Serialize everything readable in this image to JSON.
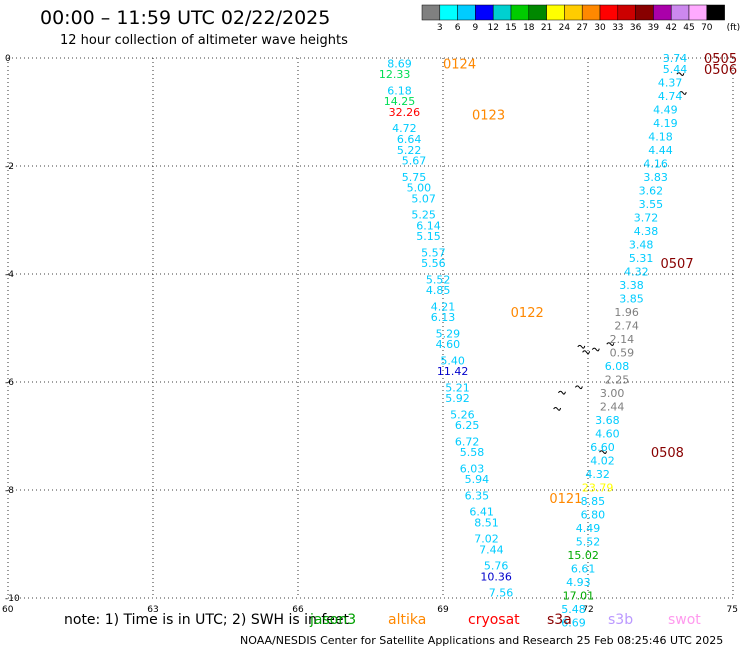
{
  "header": {
    "title": "00:00 – 11:59 UTC 02/22/2025",
    "subtitle": "12 hour collection of altimeter wave heights"
  },
  "footer": {
    "note": "note: 1) Time is in UTC; 2) SWH is in feet",
    "credit": "NOAA/NESDIS Center for Satellite Applications and Research     25 Feb 08:25:46 UTC 2025"
  },
  "colorbar": {
    "unit": "(ft)",
    "ticks": [
      "3",
      "6",
      "9",
      "12",
      "15",
      "18",
      "21",
      "24",
      "27",
      "30",
      "33",
      "36",
      "39",
      "42",
      "45",
      "70"
    ],
    "colors": [
      "#808080",
      "#00ffff",
      "#00ccff",
      "#0000ff",
      "#00d0d0",
      "#00cc00",
      "#008800",
      "#ffff00",
      "#ffcc00",
      "#ff8800",
      "#ff0000",
      "#cc0000",
      "#880000",
      "#aa00aa",
      "#cc88ee",
      "#ffaaff",
      "#000000"
    ]
  },
  "satellites": [
    {
      "name": "jason3",
      "color": "#00a000"
    },
    {
      "name": "altika",
      "color": "#ff8800"
    },
    {
      "name": "cryosat",
      "color": "#ff0000"
    },
    {
      "name": "s3a",
      "color": "#880000"
    },
    {
      "name": "s3b",
      "color": "#bb99ff"
    },
    {
      "name": "swot",
      "color": "#ff99ee"
    }
  ],
  "chart_data": {
    "type": "scatter",
    "xlim": [
      60,
      75
    ],
    "ylim": [
      -10,
      0
    ],
    "xticks": [
      "60",
      "63",
      "66",
      "69",
      "72",
      "75"
    ],
    "yticks": [
      "0",
      "-2",
      "-4",
      "-6",
      "-8",
      "-10"
    ],
    "grid": true,
    "legend": "bottom",
    "pass_labels": [
      {
        "label": "0124",
        "lon": 69.0,
        "lat": -0.1,
        "color": "#ff8800"
      },
      {
        "label": "0123",
        "lon": 69.6,
        "lat": -1.05,
        "color": "#ff8800"
      },
      {
        "label": "0122",
        "lon": 70.4,
        "lat": -4.7,
        "color": "#ff8800"
      },
      {
        "label": "0121",
        "lon": 71.2,
        "lat": -8.15,
        "color": "#ff8800"
      },
      {
        "label": "0505",
        "lon": 74.4,
        "lat": 0.0,
        "color": "#880000"
      },
      {
        "label": "0506",
        "lon": 74.4,
        "lat": -0.2,
        "color": "#880000"
      },
      {
        "label": "0507",
        "lon": 73.5,
        "lat": -3.8,
        "color": "#880000"
      },
      {
        "label": "0508",
        "lon": 73.3,
        "lat": -7.3,
        "color": "#880000"
      }
    ],
    "observations": [
      {
        "lon": 68.1,
        "lat": -0.1,
        "v": "8.69",
        "c": "#00ccff"
      },
      {
        "lon": 68.0,
        "lat": -0.3,
        "v": "12.33",
        "c": "#00dd55"
      },
      {
        "lon": 68.1,
        "lat": -0.6,
        "v": "6.18",
        "c": "#00ccff"
      },
      {
        "lon": 68.1,
        "lat": -0.8,
        "v": "14.25",
        "c": "#00dd55"
      },
      {
        "lon": 68.2,
        "lat": -1.0,
        "v": "32.26",
        "c": "#ff0000"
      },
      {
        "lon": 68.2,
        "lat": -1.3,
        "v": "4.72",
        "c": "#00ccff"
      },
      {
        "lon": 68.3,
        "lat": -1.5,
        "v": "6.64",
        "c": "#00ccff"
      },
      {
        "lon": 68.3,
        "lat": -1.7,
        "v": "5.22",
        "c": "#00ccff"
      },
      {
        "lon": 68.4,
        "lat": -1.9,
        "v": "5.67",
        "c": "#00ccff"
      },
      {
        "lon": 68.4,
        "lat": -2.2,
        "v": "5.75",
        "c": "#00ccff"
      },
      {
        "lon": 68.5,
        "lat": -2.4,
        "v": "5.00",
        "c": "#00ccff"
      },
      {
        "lon": 68.6,
        "lat": -2.6,
        "v": "5.07",
        "c": "#00ccff"
      },
      {
        "lon": 68.6,
        "lat": -2.9,
        "v": "5.25",
        "c": "#00ccff"
      },
      {
        "lon": 68.7,
        "lat": -3.1,
        "v": "6.14",
        "c": "#00ccff"
      },
      {
        "lon": 68.7,
        "lat": -3.3,
        "v": "5.15",
        "c": "#00ccff"
      },
      {
        "lon": 68.8,
        "lat": -3.6,
        "v": "5.57",
        "c": "#00ccff"
      },
      {
        "lon": 68.8,
        "lat": -3.8,
        "v": "5.56",
        "c": "#00ccff"
      },
      {
        "lon": 68.9,
        "lat": -4.1,
        "v": "5.52",
        "c": "#00ccff"
      },
      {
        "lon": 68.9,
        "lat": -4.3,
        "v": "4.85",
        "c": "#00ccff"
      },
      {
        "lon": 69.0,
        "lat": -4.6,
        "v": "4.21",
        "c": "#00ccff"
      },
      {
        "lon": 69.0,
        "lat": -4.8,
        "v": "6.13",
        "c": "#00ccff"
      },
      {
        "lon": 69.1,
        "lat": -5.1,
        "v": "5.29",
        "c": "#00ccff"
      },
      {
        "lon": 69.1,
        "lat": -5.3,
        "v": "4.60",
        "c": "#00ccff"
      },
      {
        "lon": 69.2,
        "lat": -5.6,
        "v": "5.40",
        "c": "#00ccff"
      },
      {
        "lon": 69.2,
        "lat": -5.8,
        "v": "11.42",
        "c": "#0000cc"
      },
      {
        "lon": 69.3,
        "lat": -6.1,
        "v": "5.21",
        "c": "#00ccff"
      },
      {
        "lon": 69.3,
        "lat": -6.3,
        "v": "5.92",
        "c": "#00ccff"
      },
      {
        "lon": 69.4,
        "lat": -6.6,
        "v": "5.26",
        "c": "#00ccff"
      },
      {
        "lon": 69.5,
        "lat": -6.8,
        "v": "6.25",
        "c": "#00ccff"
      },
      {
        "lon": 69.5,
        "lat": -7.1,
        "v": "6.72",
        "c": "#00ccff"
      },
      {
        "lon": 69.6,
        "lat": -7.3,
        "v": "5.58",
        "c": "#00ccff"
      },
      {
        "lon": 69.6,
        "lat": -7.6,
        "v": "6.03",
        "c": "#00ccff"
      },
      {
        "lon": 69.7,
        "lat": -7.8,
        "v": "5.94",
        "c": "#00ccff"
      },
      {
        "lon": 69.7,
        "lat": -8.1,
        "v": "6.35",
        "c": "#00ccff"
      },
      {
        "lon": 69.8,
        "lat": -8.4,
        "v": "6.41",
        "c": "#00ccff"
      },
      {
        "lon": 69.9,
        "lat": -8.6,
        "v": "8.51",
        "c": "#00ccff"
      },
      {
        "lon": 69.9,
        "lat": -8.9,
        "v": "7.02",
        "c": "#00ccff"
      },
      {
        "lon": 70.0,
        "lat": -9.1,
        "v": "7.44",
        "c": "#00ccff"
      },
      {
        "lon": 70.1,
        "lat": -9.4,
        "v": "5.76",
        "c": "#00ccff"
      },
      {
        "lon": 70.1,
        "lat": -9.6,
        "v": "10.36",
        "c": "#0000cc"
      },
      {
        "lon": 70.2,
        "lat": -9.9,
        "v": "7.56",
        "c": "#00ccff"
      },
      {
        "lon": 73.8,
        "lat": 0.0,
        "v": "3.74",
        "c": "#00ccff"
      },
      {
        "lon": 73.8,
        "lat": -0.2,
        "v": "5.44",
        "c": "#00ccff"
      },
      {
        "lon": 73.7,
        "lat": -0.45,
        "v": "4.37",
        "c": "#00ccff"
      },
      {
        "lon": 73.7,
        "lat": -0.7,
        "v": "4.74",
        "c": "#00ccff"
      },
      {
        "lon": 73.6,
        "lat": -0.95,
        "v": "4.49",
        "c": "#00ccff"
      },
      {
        "lon": 73.6,
        "lat": -1.2,
        "v": "4.19",
        "c": "#00ccff"
      },
      {
        "lon": 73.5,
        "lat": -1.45,
        "v": "4.18",
        "c": "#00ccff"
      },
      {
        "lon": 73.5,
        "lat": -1.7,
        "v": "4.44",
        "c": "#00ccff"
      },
      {
        "lon": 73.4,
        "lat": -1.95,
        "v": "4.16",
        "c": "#00ccff"
      },
      {
        "lon": 73.4,
        "lat": -2.2,
        "v": "3.83",
        "c": "#00ccff"
      },
      {
        "lon": 73.3,
        "lat": -2.45,
        "v": "3.62",
        "c": "#00ccff"
      },
      {
        "lon": 73.3,
        "lat": -2.7,
        "v": "3.55",
        "c": "#00ccff"
      },
      {
        "lon": 73.2,
        "lat": -2.95,
        "v": "3.72",
        "c": "#00ccff"
      },
      {
        "lon": 73.2,
        "lat": -3.2,
        "v": "4.38",
        "c": "#00ccff"
      },
      {
        "lon": 73.1,
        "lat": -3.45,
        "v": "3.48",
        "c": "#00ccff"
      },
      {
        "lon": 73.1,
        "lat": -3.7,
        "v": "5.31",
        "c": "#00ccff"
      },
      {
        "lon": 73.0,
        "lat": -3.95,
        "v": "4.32",
        "c": "#00ccff"
      },
      {
        "lon": 72.9,
        "lat": -4.2,
        "v": "3.38",
        "c": "#00ccff"
      },
      {
        "lon": 72.9,
        "lat": -4.45,
        "v": "3.85",
        "c": "#00ccff"
      },
      {
        "lon": 72.8,
        "lat": -4.7,
        "v": "1.96",
        "c": "#808080"
      },
      {
        "lon": 72.8,
        "lat": -4.95,
        "v": "2.74",
        "c": "#808080"
      },
      {
        "lon": 72.7,
        "lat": -5.2,
        "v": "2.14",
        "c": "#808080"
      },
      {
        "lon": 72.7,
        "lat": -5.45,
        "v": "0.59",
        "c": "#808080"
      },
      {
        "lon": 72.6,
        "lat": -5.7,
        "v": "6.08",
        "c": "#00ccff"
      },
      {
        "lon": 72.6,
        "lat": -5.95,
        "v": "2.25",
        "c": "#808080"
      },
      {
        "lon": 72.5,
        "lat": -6.2,
        "v": "3.00",
        "c": "#808080"
      },
      {
        "lon": 72.5,
        "lat": -6.45,
        "v": "2.44",
        "c": "#808080"
      },
      {
        "lon": 72.4,
        "lat": -6.7,
        "v": "3.68",
        "c": "#00ccff"
      },
      {
        "lon": 72.4,
        "lat": -6.95,
        "v": "4.60",
        "c": "#00ccff"
      },
      {
        "lon": 72.3,
        "lat": -7.2,
        "v": "6.60",
        "c": "#00ccff"
      },
      {
        "lon": 72.3,
        "lat": -7.45,
        "v": "4.02",
        "c": "#00ccff"
      },
      {
        "lon": 72.2,
        "lat": -7.7,
        "v": "4.32",
        "c": "#00ccff"
      },
      {
        "lon": 72.2,
        "lat": -7.95,
        "v": "23.79",
        "c": "#ffff00"
      },
      {
        "lon": 72.1,
        "lat": -8.2,
        "v": "8.85",
        "c": "#00ccff"
      },
      {
        "lon": 72.1,
        "lat": -8.45,
        "v": "6.80",
        "c": "#00ccff"
      },
      {
        "lon": 72.0,
        "lat": -8.7,
        "v": "4.49",
        "c": "#00ccff"
      },
      {
        "lon": 72.0,
        "lat": -8.95,
        "v": "5.52",
        "c": "#00ccff"
      },
      {
        "lon": 71.9,
        "lat": -9.2,
        "v": "15.02",
        "c": "#00aa00"
      },
      {
        "lon": 71.9,
        "lat": -9.45,
        "v": "6.61",
        "c": "#00ccff"
      },
      {
        "lon": 71.8,
        "lat": -9.7,
        "v": "4.93",
        "c": "#00ccff"
      },
      {
        "lon": 71.8,
        "lat": -9.95,
        "v": "17.01",
        "c": "#00aa00"
      },
      {
        "lon": 71.7,
        "lat": -10.2,
        "v": "5.48",
        "c": "#00ccff"
      },
      {
        "lon": 71.7,
        "lat": -10.45,
        "v": "6.69",
        "c": "#00ccff"
      }
    ]
  }
}
